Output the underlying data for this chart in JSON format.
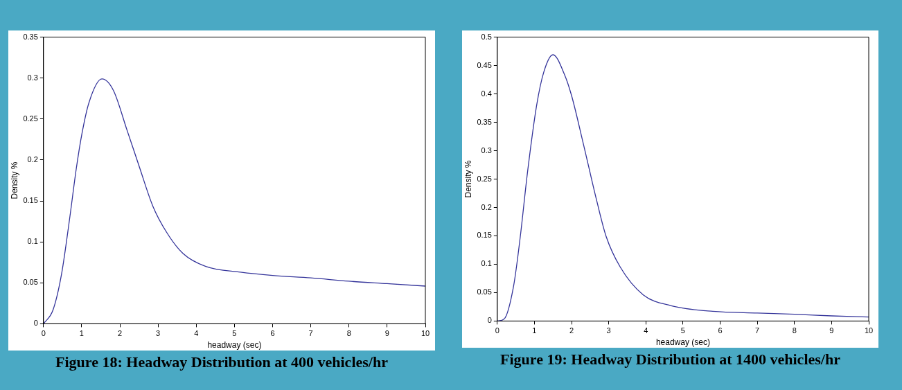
{
  "chart_data": [
    {
      "type": "line",
      "title": "Figure 18: Headway Distribution at 400 vehicles/hr",
      "xlabel": "headway (sec)",
      "ylabel": "Density %",
      "xlim": [
        0,
        10
      ],
      "xticks": [
        0,
        1,
        2,
        3,
        4,
        5,
        6,
        7,
        8,
        9,
        10
      ],
      "ylim": [
        0,
        0.35
      ],
      "yticks": [
        0,
        0.05,
        0.1,
        0.15,
        0.2,
        0.25,
        0.3,
        0.35
      ],
      "grid": false,
      "legend": false,
      "marker": "none",
      "line_style": "solid",
      "series": [
        {
          "color": "#34349a",
          "x": [
            0,
            0.25,
            0.47,
            0.68,
            0.86,
            1.01,
            1.19,
            1.53,
            1.83,
            2.19,
            2.5,
            2.86,
            3.22,
            3.65,
            4.25,
            5.16,
            6,
            7,
            8,
            9,
            10
          ],
          "values": [
            0,
            0.017,
            0.06,
            0.127,
            0.19,
            0.233,
            0.27,
            0.299,
            0.285,
            0.236,
            0.193,
            0.144,
            0.112,
            0.086,
            0.07,
            0.063,
            0.059,
            0.056,
            0.052,
            0.049,
            0.046
          ]
        }
      ]
    },
    {
      "type": "line",
      "title": "Figure 19: Headway Distribution at 1400 vehicles/hr",
      "xlabel": "headway (sec)",
      "ylabel": "Density %",
      "xlim": [
        0,
        10
      ],
      "xticks": [
        0,
        1,
        2,
        3,
        4,
        5,
        6,
        7,
        8,
        9,
        10
      ],
      "ylim": [
        0,
        0.5
      ],
      "yticks": [
        0,
        0.05,
        0.1,
        0.15,
        0.2,
        0.25,
        0.3,
        0.35,
        0.4,
        0.45,
        0.5
      ],
      "grid": false,
      "legend": false,
      "marker": "none",
      "line_style": "solid",
      "series": [
        {
          "color": "#34349a",
          "x": [
            0,
            0.19,
            0.44,
            0.62,
            0.81,
            1.06,
            1.25,
            1.5,
            1.81,
            2,
            2.31,
            2.68,
            2.93,
            3.31,
            3.93,
            4.68,
            5.8,
            7,
            8,
            9,
            10
          ],
          "values": [
            0,
            0.004,
            0.062,
            0.149,
            0.26,
            0.38,
            0.438,
            0.469,
            0.434,
            0.397,
            0.314,
            0.211,
            0.149,
            0.095,
            0.046,
            0.027,
            0.017,
            0.014,
            0.012,
            0.009,
            0.007
          ]
        }
      ]
    }
  ]
}
